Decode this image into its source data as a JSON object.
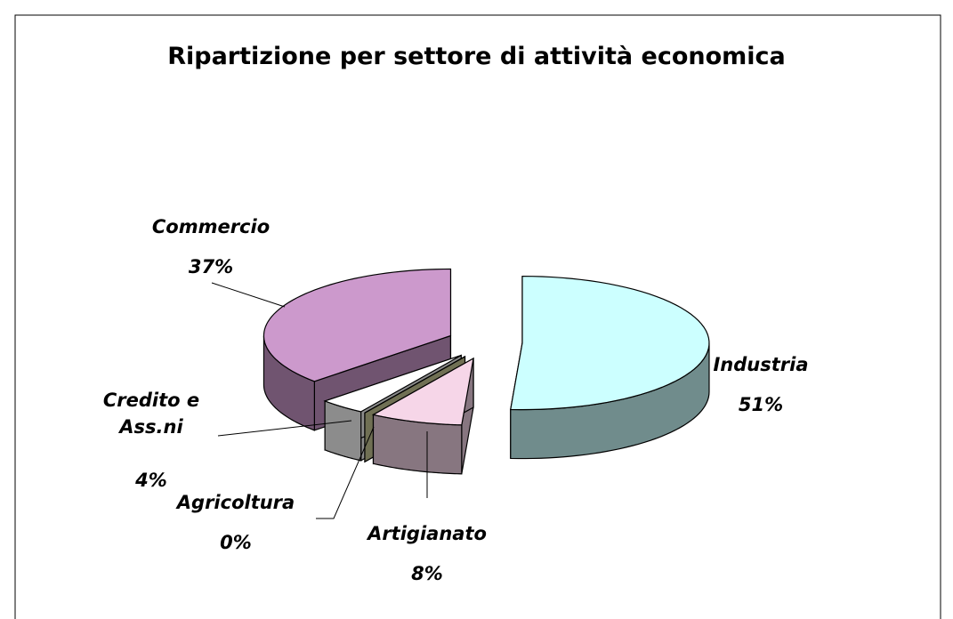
{
  "chart_data": {
    "type": "pie",
    "title": "Ripartizione per settore di attività economica",
    "categories": [
      "Industria",
      "Artigianato",
      "Agricoltura",
      "Credito e Ass.ni",
      "Commercio"
    ],
    "values": [
      51,
      8,
      0,
      4,
      37
    ],
    "value_labels": [
      "51%",
      "8%",
      "0%",
      "4%",
      "37%"
    ],
    "colors": [
      "#ccffff",
      "#f6d6e8",
      "#cccc99",
      "#ffffff",
      "#cc99cc"
    ]
  }
}
